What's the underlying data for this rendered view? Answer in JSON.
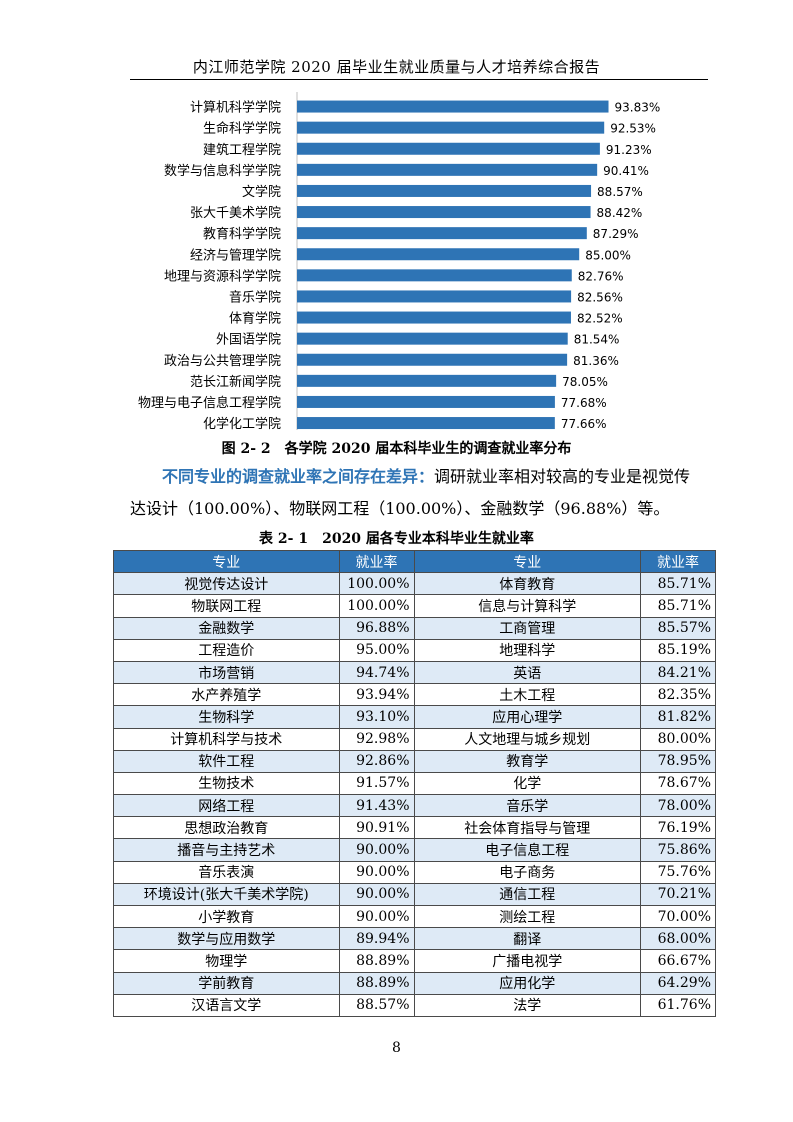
{
  "header": {
    "title": "内江师范学院 2020 届毕业生就业质量与人才培养综合报告"
  },
  "figure": {
    "caption": "图 2- 2　各学院 2020 届本科毕业生的调查就业率分布"
  },
  "chart_data": {
    "type": "bar",
    "orientation": "horizontal",
    "categories": [
      "计算机科学学院",
      "生命科学学院",
      "建筑工程学院",
      "数学与信息科学学院",
      "文学院",
      "张大千美术学院",
      "教育科学学院",
      "经济与管理学院",
      "地理与资源科学学院",
      "音乐学院",
      "体育学院",
      "外国语学院",
      "政治与公共管理学院",
      "范长江新闻学院",
      "物理与电子信息工程学院",
      "化学化工学院"
    ],
    "values": [
      93.83,
      92.53,
      91.23,
      90.41,
      88.57,
      88.42,
      87.29,
      85.0,
      82.76,
      82.56,
      82.52,
      81.54,
      81.36,
      78.05,
      77.68,
      77.66
    ],
    "value_labels": [
      "93.83%",
      "92.53%",
      "91.23%",
      "90.41%",
      "88.57%",
      "88.42%",
      "87.29%",
      "85.00%",
      "82.76%",
      "82.56%",
      "82.52%",
      "81.54%",
      "81.36%",
      "78.05%",
      "77.68%",
      "77.66%"
    ],
    "xlim": [
      0,
      100
    ],
    "bar_color": "#2E74B5",
    "grid": false,
    "legend": "none"
  },
  "paragraph": {
    "lead": "不同专业的调查就业率之间存在差异：",
    "line1_rest": "调研就业率相对较高的专业是视觉传",
    "line2": "达设计（100.00%）、物联网工程（100.00%）、金融数学（96.88%）等。"
  },
  "table": {
    "caption": "表 2- 1　2020 届各专业本科毕业生就业率",
    "headers": [
      "专业",
      "就业率",
      "专业",
      "就业率"
    ],
    "rows": [
      [
        "视觉传达设计",
        "100.00%",
        "体育教育",
        "85.71%"
      ],
      [
        "物联网工程",
        "100.00%",
        "信息与计算科学",
        "85.71%"
      ],
      [
        "金融数学",
        "96.88%",
        "工商管理",
        "85.57%"
      ],
      [
        "工程造价",
        "95.00%",
        "地理科学",
        "85.19%"
      ],
      [
        "市场营销",
        "94.74%",
        "英语",
        "84.21%"
      ],
      [
        "水产养殖学",
        "93.94%",
        "土木工程",
        "82.35%"
      ],
      [
        "生物科学",
        "93.10%",
        "应用心理学",
        "81.82%"
      ],
      [
        "计算机科学与技术",
        "92.98%",
        "人文地理与城乡规划",
        "80.00%"
      ],
      [
        "软件工程",
        "92.86%",
        "教育学",
        "78.95%"
      ],
      [
        "生物技术",
        "91.57%",
        "化学",
        "78.67%"
      ],
      [
        "网络工程",
        "91.43%",
        "音乐学",
        "78.00%"
      ],
      [
        "思想政治教育",
        "90.91%",
        "社会体育指导与管理",
        "76.19%"
      ],
      [
        "播音与主持艺术",
        "90.00%",
        "电子信息工程",
        "75.86%"
      ],
      [
        "音乐表演",
        "90.00%",
        "电子商务",
        "75.76%"
      ],
      [
        "环境设计(张大千美术学院)",
        "90.00%",
        "通信工程",
        "70.21%"
      ],
      [
        "小学教育",
        "90.00%",
        "测绘工程",
        "70.00%"
      ],
      [
        "数学与应用数学",
        "89.94%",
        "翻译",
        "68.00%"
      ],
      [
        "物理学",
        "88.89%",
        "广播电视学",
        "66.67%"
      ],
      [
        "学前教育",
        "88.89%",
        "应用化学",
        "64.29%"
      ],
      [
        "汉语言文学",
        "88.57%",
        "法学",
        "61.76%"
      ]
    ]
  },
  "footer": {
    "page_number": "8"
  }
}
